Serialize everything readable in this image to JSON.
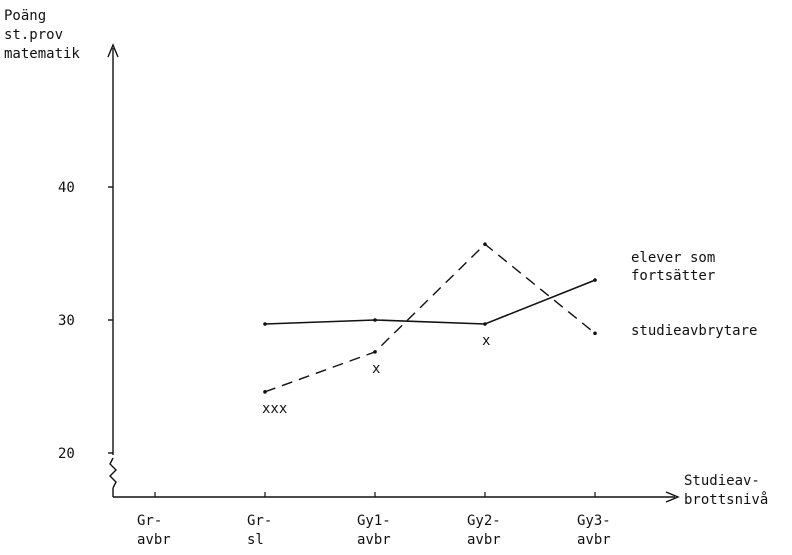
{
  "chart_data": {
    "type": "line",
    "ylabel_lines": [
      "Poäng",
      "st.prov",
      "matematik"
    ],
    "xlabel_lines": [
      "Studieav-",
      "brottsnivå"
    ],
    "categories": [
      [
        "Gr-",
        "avbr"
      ],
      [
        "Gr-",
        "sl"
      ],
      [
        "Gy1-",
        "avbr"
      ],
      [
        "Gy2-",
        "avbr"
      ],
      [
        "Gy3-",
        "avbr"
      ]
    ],
    "yticks": [
      20,
      30,
      40
    ],
    "ylim": [
      20,
      50
    ],
    "axis_break": true,
    "series": [
      {
        "name_lines": [
          "elever som",
          "fortsätter"
        ],
        "style": "solid",
        "points": [
          [
            1,
            29.7
          ],
          [
            2,
            30.0
          ],
          [
            3,
            29.7
          ],
          [
            4,
            33.0
          ]
        ]
      },
      {
        "name_lines": [
          "studieavbrytare"
        ],
        "style": "dashed",
        "points": [
          [
            1,
            24.6
          ],
          [
            2,
            27.6
          ],
          [
            3,
            35.7
          ],
          [
            4,
            29.0
          ]
        ]
      }
    ],
    "annotations": [
      {
        "text": "xxx",
        "x": 1,
        "y": 24.6
      },
      {
        "text": "x",
        "x": 2,
        "y": 27.6
      },
      {
        "text": "x",
        "x": 3,
        "y": 29.7
      }
    ]
  }
}
